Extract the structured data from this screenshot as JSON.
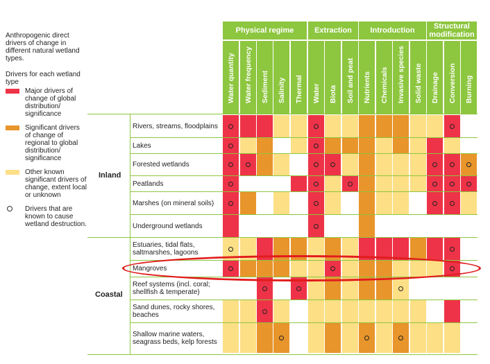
{
  "legend": {
    "intro": "Anthropogenic direct drivers of change in different natural wetland types.",
    "drivers_heading": "Drivers for each wetland type",
    "items": [
      {
        "label": "Major drivers of change of global distribution/ significance",
        "color": "#ee3348"
      },
      {
        "label": "Significant drivers of change of regional to global distribution/ significance",
        "color": "#e8952b"
      },
      {
        "label": "Other known significant drivers of change, extent local or unknown",
        "color": "#fddf85"
      },
      {
        "label": "Drivers that are known to cause wetland destruction.",
        "symbol": "O"
      }
    ]
  },
  "groups": [
    {
      "label": "Physical regime",
      "span": 5
    },
    {
      "label": "Extraction",
      "span": 3
    },
    {
      "label": "Introduction",
      "span": 4
    },
    {
      "label": "Structural modification",
      "span": 3
    }
  ],
  "columns": [
    "Water quantity",
    "Water frequency",
    "Sediment",
    "Salinity",
    "Thermal",
    "Water",
    "Biota",
    "Soil and peat",
    "Nutrients",
    "Chemicals",
    "Invasive species",
    "Solid waste",
    "Drainage",
    "Conversion",
    "Burning"
  ],
  "categories": {
    "inland": "Inland",
    "coastal": "Coastal"
  },
  "rows": [
    {
      "label": "Rivers, streams, floodplains",
      "cells": "MMMOOMOOSSSOOMW",
      "circles": [
        0,
        5,
        13
      ]
    },
    {
      "label": "Lakes",
      "cells": "MOSWOMSSSOSOMOW",
      "circles": [
        0,
        5
      ]
    },
    {
      "label": "Forested wetlands",
      "cells": "MMSOWMMOSOOOMMS",
      "circles": [
        0,
        1,
        5,
        6,
        12,
        13,
        14
      ]
    },
    {
      "label": "Peatlands",
      "cells": "MWWWMMOMSOOOMMM",
      "circles": [
        0,
        5,
        7,
        12,
        13,
        14
      ]
    },
    {
      "label": "Marshes (on mineral soils)",
      "cells": "MSWOWMOWSOOWMMO",
      "circles": [
        0,
        5,
        12,
        13
      ]
    },
    {
      "label": "Underground wetlands",
      "cells": "MWWWWMWWSWWWWWW",
      "circles": [
        5
      ]
    },
    {
      "label": "Estuaries, tidal flats, saltmarshes, lagoons",
      "cells": "OOMSSOSOMMMSMMW",
      "circles": [
        0,
        13
      ]
    },
    {
      "label": "Mangroves",
      "cells": "MSSSOOMOSSOOOMW",
      "circles": [
        0,
        6,
        13
      ]
    },
    {
      "label": "Reef systems (incl. coral; shellfish & temperate)",
      "cells": "WWMWMOSOSSOWWWW",
      "circles": [
        2,
        4,
        10
      ]
    },
    {
      "label": "Sand dunes, rocky shores, beaches",
      "cells": "OOMOWOOOOOOOWMW",
      "circles": [
        2
      ]
    },
    {
      "label": "Shallow marine waters, seagrass beds, kelp forests",
      "cells": "OOSSWOSOSOSOOOW",
      "circles": [
        3,
        8,
        10
      ]
    }
  ]
}
